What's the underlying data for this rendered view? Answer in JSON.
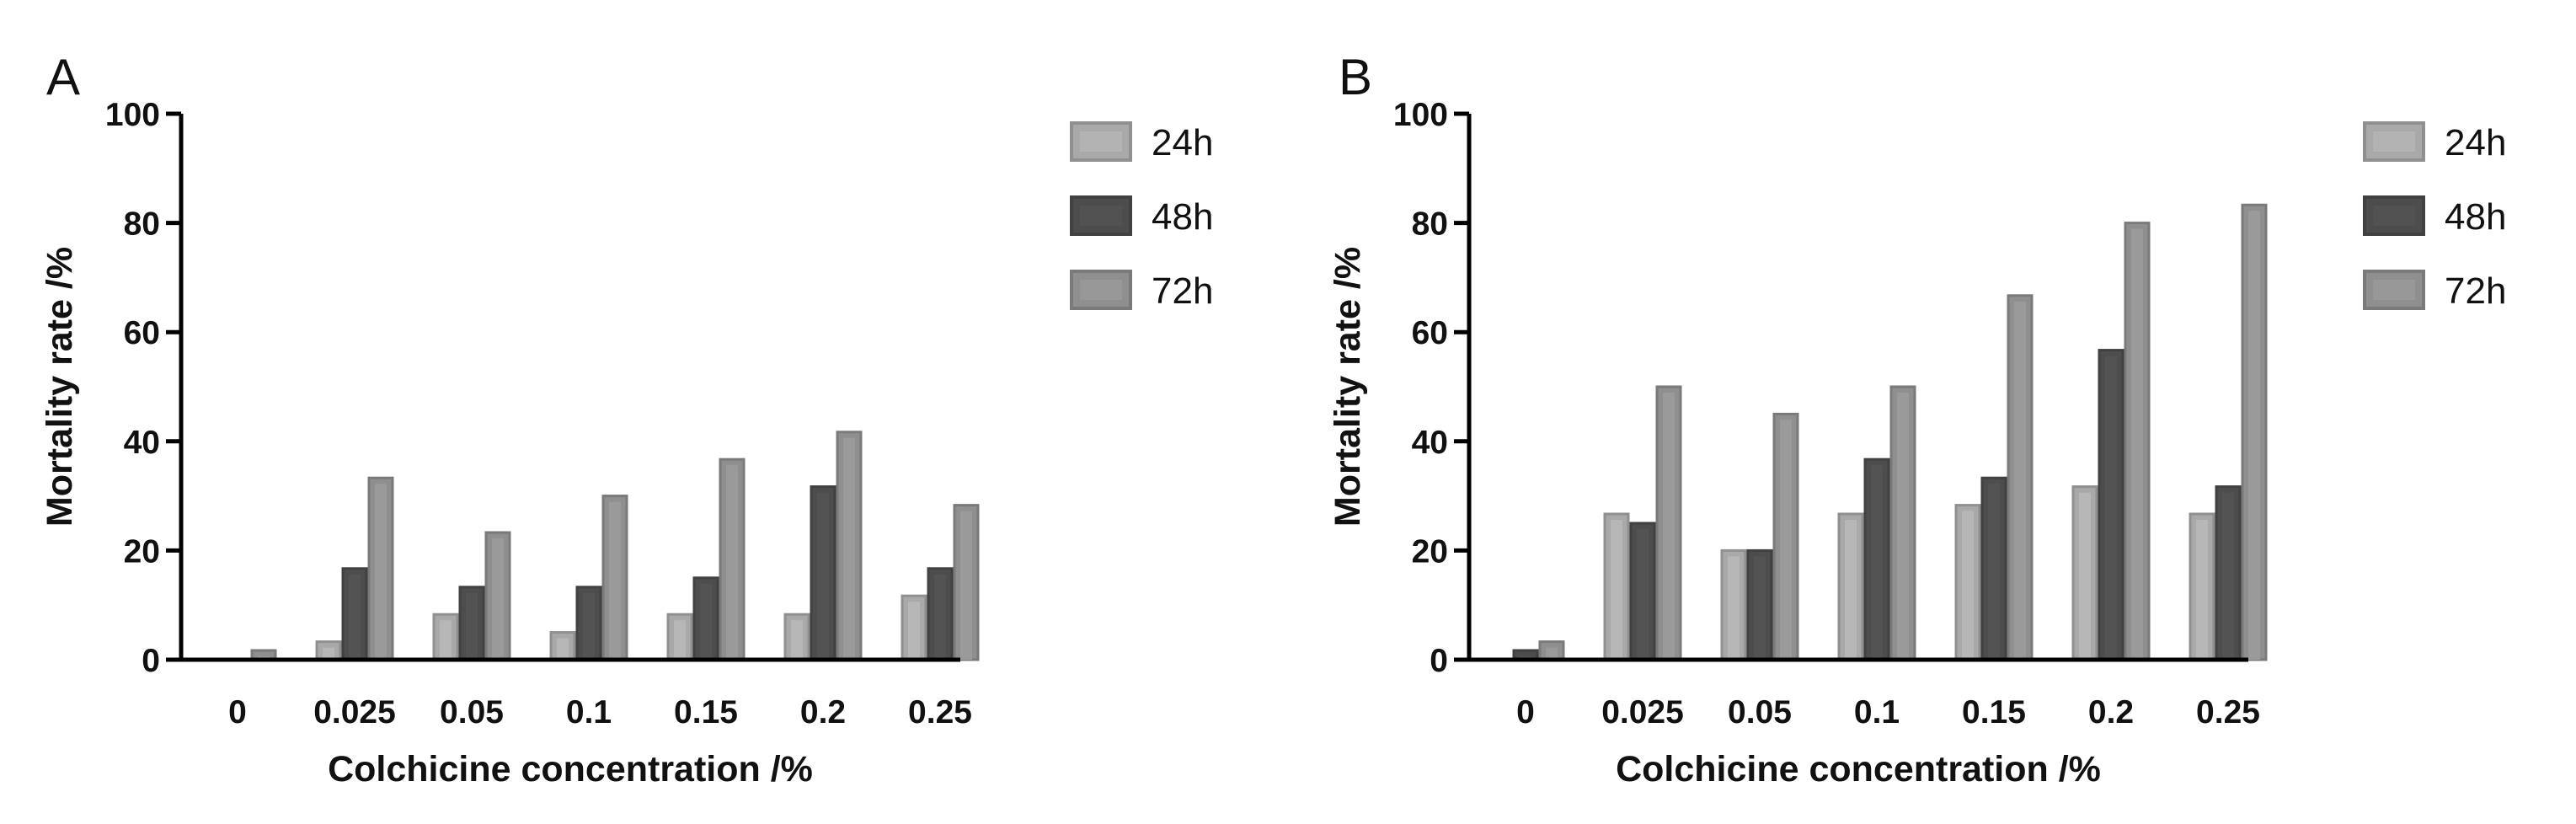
{
  "chart_data": [
    {
      "panel": "A",
      "type": "bar",
      "xlabel": "Colchicine concentration /%",
      "ylabel": "Mortality rate /%",
      "ylim": [
        0,
        100
      ],
      "yticks": [
        "0",
        "20",
        "40",
        "60",
        "80",
        "100"
      ],
      "categories": [
        "0",
        "0.025",
        "0.05",
        "0.1",
        "0.15",
        "0.2",
        "0.25"
      ],
      "series": [
        {
          "name": "24h",
          "color": "#a9a9a9",
          "values": [
            0,
            3.3,
            8.3,
            5,
            8.3,
            8.3,
            11.7
          ]
        },
        {
          "name": "48h",
          "color": "#4d4d4d",
          "values": [
            0,
            16.7,
            13.3,
            13.3,
            15,
            31.7,
            16.7
          ]
        },
        {
          "name": "72h",
          "color": "#8f8f8f",
          "values": [
            1.7,
            33.3,
            23.3,
            30,
            36.7,
            41.7,
            28.3
          ]
        }
      ],
      "legend_position": "top-right",
      "grid": false
    },
    {
      "panel": "B",
      "type": "bar",
      "xlabel": "Colchicine concentration /%",
      "ylabel": "Mortality rate /%",
      "ylim": [
        0,
        100
      ],
      "yticks": [
        "0",
        "20",
        "40",
        "60",
        "80",
        "100"
      ],
      "categories": [
        "0",
        "0.025",
        "0.05",
        "0.1",
        "0.15",
        "0.2",
        "0.25"
      ],
      "series": [
        {
          "name": "24h",
          "color": "#a9a9a9",
          "values": [
            0,
            26.7,
            20,
            26.7,
            28.3,
            31.7,
            26.7
          ]
        },
        {
          "name": "48h",
          "color": "#4d4d4d",
          "values": [
            1.7,
            25,
            20,
            36.7,
            33.3,
            56.7,
            31.7
          ]
        },
        {
          "name": "72h",
          "color": "#8f8f8f",
          "values": [
            3.3,
            50,
            45,
            50,
            66.7,
            80,
            83.3
          ]
        }
      ],
      "legend_position": "top-right",
      "grid": false
    }
  ]
}
